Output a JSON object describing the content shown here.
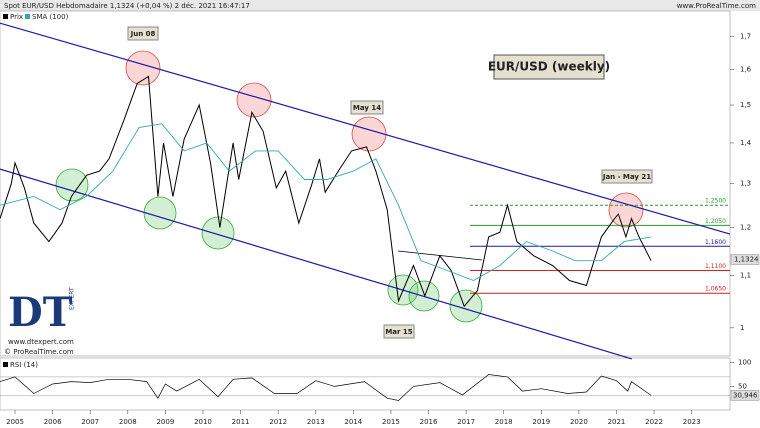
{
  "chart_data": {
    "type": "line",
    "title": "Spot EUR/USD Hebdomadaire 1,1324 (+0,04 %) 2 déc. 2021 16:47:17",
    "source": "www.ProRealTime.com",
    "log_scale": true,
    "xlim": [
      2004.6,
      2024.02
    ],
    "xticks": [
      2005,
      2006,
      2007,
      2008,
      2009,
      2010,
      2011,
      2012,
      2013,
      2014,
      2015,
      2016,
      2017,
      2018,
      2019,
      2020,
      2021,
      2022,
      2023
    ],
    "ylim": [
      0.95,
      1.78
    ],
    "yticks": [
      {
        "value": 1.7,
        "label": "1,7"
      },
      {
        "value": 1.6,
        "label": "1,6"
      },
      {
        "value": 1.5,
        "label": "1,5"
      },
      {
        "value": 1.4,
        "label": "1,4"
      },
      {
        "value": 1.3,
        "label": "1,3"
      },
      {
        "value": 1.2,
        "label": "1,2"
      },
      {
        "value": 1.1,
        "label": "1,1"
      },
      1
    ],
    "series": [
      {
        "name": "Prix",
        "color": "#000000",
        "x": [
          2004.6,
          2004.9,
          2005.0,
          2005.25,
          2005.5,
          2005.9,
          2006.25,
          2006.5,
          2006.9,
          2007.25,
          2007.5,
          2007.9,
          2008.25,
          2008.55,
          2008.8,
          2008.95,
          2009.2,
          2009.5,
          2009.9,
          2010.2,
          2010.45,
          2010.8,
          2010.95,
          2011.3,
          2011.6,
          2011.95,
          2012.2,
          2012.55,
          2012.9,
          2013.1,
          2013.25,
          2013.6,
          2013.95,
          2014.35,
          2014.6,
          2014.9,
          2015.2,
          2015.6,
          2015.9,
          2016.3,
          2016.6,
          2016.95,
          2017.3,
          2017.6,
          2017.9,
          2018.1,
          2018.35,
          2018.8,
          2019.3,
          2019.75,
          2020.2,
          2020.6,
          2020.95,
          2021.05,
          2021.25,
          2021.4,
          2021.6,
          2021.92
        ],
        "values": [
          1.22,
          1.3,
          1.35,
          1.29,
          1.21,
          1.17,
          1.21,
          1.27,
          1.32,
          1.33,
          1.36,
          1.46,
          1.56,
          1.58,
          1.27,
          1.4,
          1.27,
          1.41,
          1.5,
          1.35,
          1.2,
          1.4,
          1.31,
          1.48,
          1.43,
          1.29,
          1.33,
          1.21,
          1.3,
          1.36,
          1.28,
          1.33,
          1.38,
          1.39,
          1.33,
          1.24,
          1.05,
          1.12,
          1.06,
          1.14,
          1.11,
          1.04,
          1.07,
          1.18,
          1.19,
          1.25,
          1.17,
          1.14,
          1.12,
          1.09,
          1.08,
          1.18,
          1.22,
          1.23,
          1.18,
          1.22,
          1.18,
          1.13
        ],
        "current": {
          "value": 1.1324,
          "label": "1,1324"
        }
      },
      {
        "name": "SMA (100)",
        "color": "#33aaaa",
        "x": [
          2004.6,
          2005.5,
          2006.2,
          2006.9,
          2007.6,
          2008.3,
          2008.9,
          2009.5,
          2010.1,
          2010.7,
          2011.4,
          2012.0,
          2012.7,
          2013.3,
          2014.0,
          2014.6,
          2015.2,
          2015.8,
          2016.5,
          2017.2,
          2017.9,
          2018.6,
          2019.3,
          2019.9,
          2020.6,
          2021.2,
          2021.92
        ],
        "values": [
          1.25,
          1.27,
          1.24,
          1.27,
          1.33,
          1.44,
          1.45,
          1.38,
          1.4,
          1.33,
          1.38,
          1.38,
          1.31,
          1.31,
          1.33,
          1.36,
          1.25,
          1.13,
          1.11,
          1.09,
          1.12,
          1.17,
          1.15,
          1.13,
          1.13,
          1.17,
          1.18
        ]
      }
    ],
    "trendlines": [
      {
        "color": "#1a1aa8",
        "x": [
          2004.6,
          2024.02
        ],
        "values": [
          1.741,
          1.186
        ]
      },
      {
        "color": "#1a1aa8",
        "x": [
          2004.6,
          2021.41
        ],
        "values": [
          1.335,
          0.945
        ]
      }
    ],
    "levels": [
      {
        "value": 1.25,
        "label": "1,2500",
        "color": "#2a9a2a",
        "dashed": true
      },
      {
        "value": 1.205,
        "label": "1,2050",
        "color": "#2a9a2a"
      },
      {
        "value": 1.16,
        "label": "1,1600",
        "color": "#1a1aa8"
      },
      {
        "value": 1.11,
        "label": "1,1100",
        "color": "#d02020"
      },
      {
        "value": 1.065,
        "label": "1,0650",
        "color": "#d02020"
      }
    ],
    "annotations": [
      "Jun 08",
      "May 14",
      "Mar 15",
      "Jan - May 21",
      "EUR/USD (weekly)"
    ],
    "logo": "DT",
    "logo_sub": "EXPERT",
    "website": "www.dtexpert.com",
    "copyright": "© ProRealTime.com",
    "rsi": {
      "name": "RSI (14)",
      "color": "#000000",
      "ylim": [
        0,
        110
      ],
      "yticks": [
        100,
        50
      ],
      "levels": [
        70,
        30
      ],
      "x": [
        2004.6,
        2005.0,
        2005.5,
        2006,
        2006.5,
        2007,
        2007.5,
        2008,
        2008.5,
        2008.8,
        2009,
        2009.3,
        2009.9,
        2010.4,
        2010.8,
        2011.3,
        2011.9,
        2012.5,
        2013,
        2013.5,
        2014.3,
        2014.9,
        2015.2,
        2015.6,
        2016.3,
        2016.9,
        2017.6,
        2018.1,
        2018.5,
        2019,
        2019.7,
        2020.2,
        2020.6,
        2021.0,
        2021.3,
        2021.4,
        2021.92
      ],
      "values": [
        60,
        70,
        35,
        55,
        60,
        58,
        65,
        65,
        60,
        25,
        55,
        40,
        65,
        28,
        65,
        68,
        35,
        35,
        62,
        50,
        60,
        25,
        20,
        50,
        58,
        32,
        75,
        70,
        40,
        45,
        35,
        38,
        72,
        62,
        40,
        60,
        30.946
      ],
      "current": {
        "value": 30.946,
        "label": "30,946"
      }
    }
  }
}
